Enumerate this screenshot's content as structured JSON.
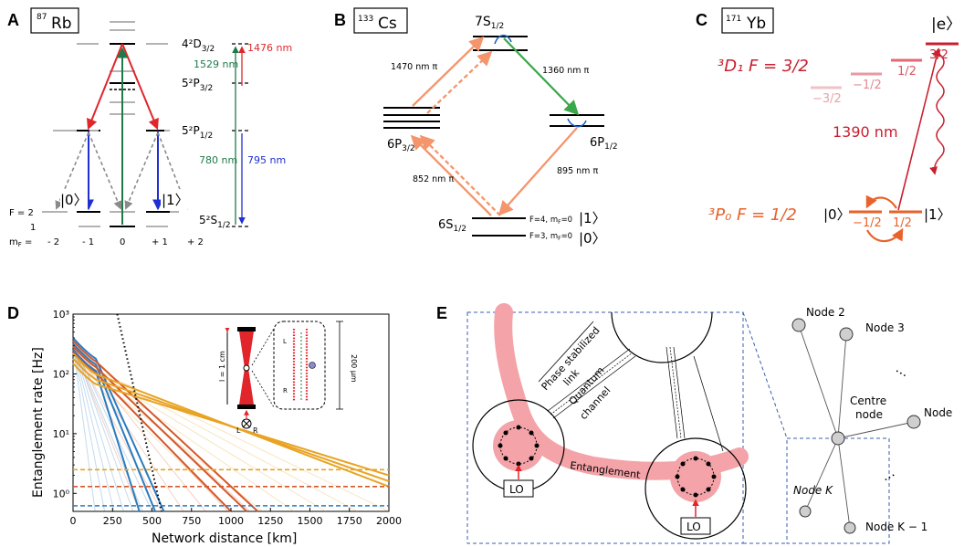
{
  "panels": {
    "A": {
      "letter": "A",
      "species_mass": "87",
      "species": "Rb",
      "levels": [
        "4²D",
        "5²P",
        "5²P",
        "5²S"
      ],
      "level_subs": [
        "3/2",
        "3/2",
        "1/2",
        "1/2"
      ],
      "wavelengths": {
        "w1529": "1529 nm",
        "w1476": "1476 nm",
        "w780": "780 nm",
        "w795": "795 nm"
      },
      "state0": "|0〉",
      "state1": "|1〉",
      "f2": "F = 2",
      "f1": "1",
      "mf_label": "m",
      "mf_sub": "F",
      "mf_eq": " =",
      "mf_values": [
        "- 2",
        "- 1",
        "0",
        "+ 1",
        "+ 2"
      ],
      "colors": {
        "red": "#e0262b",
        "green": "#1f7a4a",
        "blue": "#1f2fd0",
        "gray": "#9a9a9a"
      }
    },
    "B": {
      "letter": "B",
      "species_mass": "133",
      "species": "Cs",
      "levels": [
        "7S",
        "6P",
        "6P",
        "6S"
      ],
      "level_subs": [
        "1/2",
        "3/2",
        "1/2",
        "1/2"
      ],
      "transitions": [
        "1470 nm π",
        "1360 nm π",
        "852 nm π",
        "895 nm π"
      ],
      "state_f4": "F=4, m",
      "state_f4_rest": "=0",
      "state_f3": "F=3, m",
      "state_f3_rest": "=0",
      "mf_sub": "F",
      "state1": "|1〉",
      "state0": "|0〉",
      "colors": {
        "salmon": "#f4956c",
        "green": "#3aa84a",
        "blue": "#1f5fc0"
      }
    },
    "C": {
      "letter": "C",
      "species_mass": "171",
      "species": "Yb",
      "e_state": "|e〉",
      "d_label": "³D₁  F = 3/2",
      "p_label": "³P₀  F = 1/2",
      "sublevels_upper": [
        "−3/2",
        "−1/2",
        "1/2",
        "3/2"
      ],
      "sublevels_lower": [
        "−1/2",
        "1/2"
      ],
      "wavelength": "1390 nm",
      "state0": "|0〉",
      "state1": "|1〉",
      "colors": {
        "red": "#c8202f",
        "pink": "#e89aa1",
        "orange": "#e8622a"
      }
    },
    "D": {
      "letter": "D",
      "ylabel": "Entanglement rate [Hz]",
      "xlabel": "Network distance [km]",
      "inset_l": "l = 1 cm",
      "inset_um": "200 μm",
      "inset_L": "L",
      "inset_R": "R"
    },
    "E": {
      "letter": "E",
      "phase_link": "Phase stabilized link",
      "phase_link_1": "Phase stabilized",
      "phase_link_2": "link",
      "quantum_1": "Quantum",
      "quantum_2": "channel",
      "entanglement": "Entanglement",
      "lo": "LO",
      "nodes": [
        "Node 2",
        "Node 3",
        "Centre",
        "node",
        "Node",
        "Node K",
        "Node K − 1",
        "⋯",
        "⋯"
      ]
    }
  },
  "chart_data": {
    "type": "line",
    "title": "",
    "xlabel": "Network distance [km]",
    "ylabel": "Entanglement rate [Hz]",
    "xlim": [
      0,
      2000
    ],
    "ylim": [
      0.5,
      1000
    ],
    "yscale": "log",
    "x_ticks": [
      0,
      250,
      500,
      750,
      1000,
      1250,
      1500,
      1750,
      2000
    ],
    "y_ticks": [
      "10⁰",
      "10¹",
      "10²",
      "10³"
    ],
    "y_tick_values": [
      1,
      10,
      100,
      1000
    ],
    "groups": [
      {
        "color": "#2a7bbf",
        "y0": [
          250,
          320,
          400
        ],
        "x_end": [
          420,
          520,
          575
        ],
        "faint_ends": [
          140,
          200,
          260,
          320,
          380,
          440,
          500
        ]
      },
      {
        "color": "#d4582a",
        "y0": [
          230,
          290,
          360
        ],
        "x_end": [
          1000,
          1100,
          1170
        ],
        "faint_ends": [
          420,
          560,
          700,
          840,
          980,
          1120
        ]
      },
      {
        "color": "#e8a323",
        "y0": [
          150,
          180,
          220
        ],
        "x_end": [
          2000,
          2000,
          2000
        ],
        "end_values": [
          2.0,
          1.6,
          1.3
        ],
        "faint_ends": [
          1000,
          1200,
          1400,
          1600,
          1800,
          2000
        ]
      }
    ],
    "dashed_hlines": [
      {
        "color": "#e8a323",
        "value": 2.5
      },
      {
        "color": "#d4582a",
        "value": 1.3
      },
      {
        "color": "#2a7bbf",
        "value": 0.62
      }
    ],
    "dotted_line": {
      "color": "#000000",
      "points": [
        [
          280,
          1000
        ],
        [
          560,
          0.5
        ]
      ]
    }
  }
}
